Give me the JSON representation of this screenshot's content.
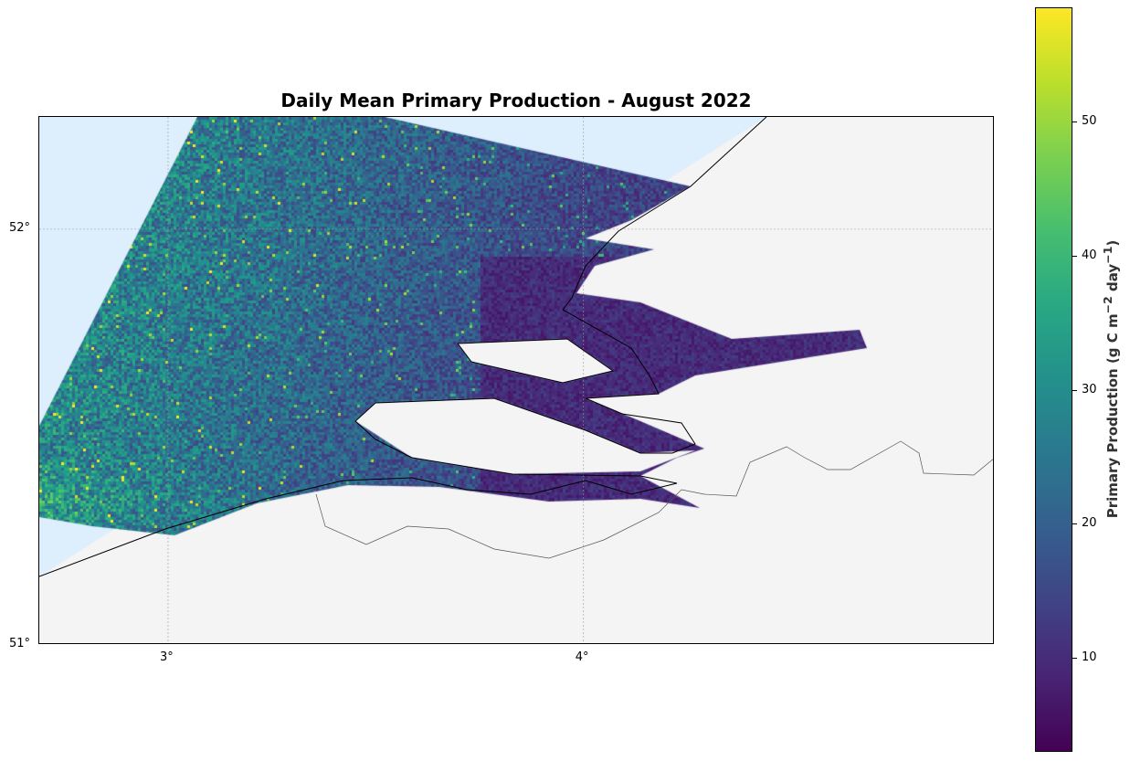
{
  "title": "Daily Mean Primary Production - August 2022",
  "chart_data": {
    "type": "heatmap",
    "title": "Daily Mean Primary Production - August 2022",
    "xlim": [
      2.69,
      4.99
    ],
    "ylim": [
      51.0,
      52.27
    ],
    "x_ticks": [
      {
        "value": 3,
        "label": "3°"
      },
      {
        "value": 4,
        "label": "4°"
      }
    ],
    "y_ticks": [
      {
        "value": 51,
        "label": "51°"
      },
      {
        "value": 52,
        "label": "52°"
      }
    ],
    "grid": true,
    "colormap": "viridis",
    "colorbar": {
      "label_main": "Primary Production (g C m",
      "label_exp1": "−2",
      "label_mid": " day",
      "label_exp2": "−1",
      "label_end": ")",
      "range": [
        3,
        58.5
      ],
      "ticks": [
        {
          "value": 10,
          "label": "10"
        },
        {
          "value": 20,
          "label": "20"
        },
        {
          "value": 30,
          "label": "30"
        },
        {
          "value": 40,
          "label": "40"
        },
        {
          "value": 50,
          "label": "50"
        }
      ]
    },
    "colors": {
      "ocean": "#ddeefc",
      "land": "#f4f4f4",
      "coastline": "#000000",
      "border": "#555555"
    }
  }
}
